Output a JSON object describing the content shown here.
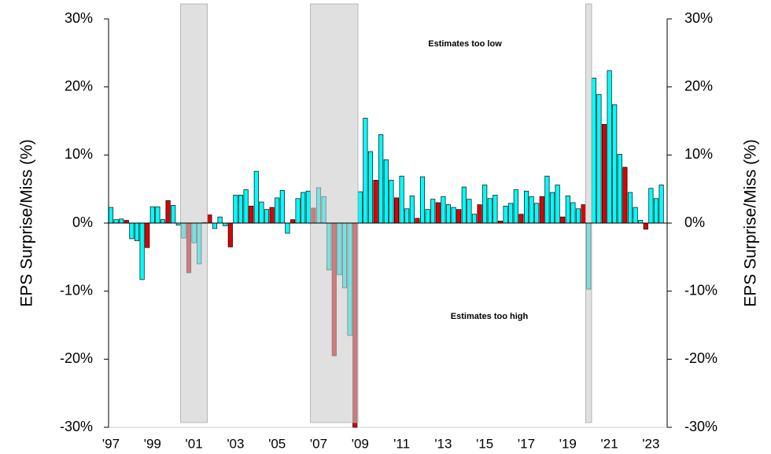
{
  "chart_data": {
    "type": "bar",
    "ylabel": "EPS Surprise/Miss (%)",
    "y2label": "EPS Surprise/Miss (%)",
    "annotations": [
      "Estimates too low",
      "Estimates too high"
    ],
    "categories": [
      "'97",
      null,
      null,
      null,
      null,
      null,
      null,
      null,
      "'99",
      null,
      null,
      null,
      null,
      null,
      null,
      null,
      "'01",
      null,
      null,
      null,
      null,
      null,
      null,
      null,
      "'03",
      null,
      null,
      null,
      null,
      null,
      null,
      null,
      "'05",
      null,
      null,
      null,
      null,
      null,
      null,
      null,
      "'07",
      null,
      null,
      null,
      null,
      null,
      null,
      null,
      "'09",
      null,
      null,
      null,
      null,
      null,
      null,
      null,
      "'11",
      null,
      null,
      null,
      null,
      null,
      null,
      null,
      "'13",
      null,
      null,
      null,
      null,
      null,
      null,
      null,
      "'15",
      null,
      null,
      null,
      null,
      null,
      null,
      null,
      "'17",
      null,
      null,
      null,
      null,
      null,
      null,
      null,
      "'19",
      null,
      null,
      null,
      null,
      null,
      null,
      null,
      "'21",
      null,
      null,
      null,
      null,
      null,
      null,
      null,
      "'23",
      null,
      null
    ],
    "values": [
      2.3,
      0.5,
      0.6,
      0.4,
      -2.3,
      -2.6,
      -8.3,
      -3.6,
      2.4,
      2.4,
      0.5,
      3.3,
      2.6,
      -0.3,
      -2.2,
      -7.3,
      -2.9,
      -6.0,
      0.1,
      1.2,
      -0.8,
      0.9,
      -0.4,
      -3.5,
      4.1,
      4.1,
      4.9,
      2.5,
      7.6,
      3.1,
      2.0,
      2.3,
      3.7,
      4.8,
      -1.5,
      0.5,
      3.6,
      4.5,
      4.7,
      2.2,
      5.2,
      3.9,
      -6.9,
      -19.5,
      -7.6,
      -9.5,
      -16.5,
      -30,
      4.6,
      15.4,
      10.5,
      6.3,
      13.0,
      9.3,
      6.3,
      3.7,
      6.9,
      2.1,
      4.0,
      0.7,
      6.8,
      2.0,
      3.5,
      3.0,
      3.9,
      2.7,
      2.3,
      2.0,
      5.3,
      3.5,
      1.3,
      2.7,
      5.6,
      3.6,
      4.1,
      0.3,
      2.5,
      2.9,
      4.9,
      1.3,
      4.7,
      3.9,
      2.9,
      3.9,
      6.9,
      4.5,
      5.6,
      0.9,
      4.0,
      3.0,
      2.1,
      2.7,
      -9.7,
      21.3,
      18.9,
      14.5,
      22.4,
      17.4,
      10.1,
      8.2,
      4.5,
      2.3,
      0.4,
      -0.9,
      5.1,
      3.6,
      5.6
    ],
    "colors": [
      "#00ffff",
      "#00ffff",
      "#00ffff",
      "#dd0000",
      "#00ffff",
      "#00ffff",
      "#00ffff",
      "#dd0000",
      "#00ffff",
      "#00ffff",
      "#00ffff",
      "#dd0000",
      "#00ffff",
      "#00ffff",
      "#00ffff",
      "#dd0000",
      "#00ffff",
      "#00ffff",
      "#00ffff",
      "#dd0000",
      "#00ffff",
      "#00ffff",
      "#00ffff",
      "#dd0000",
      "#00ffff",
      "#00ffff",
      "#00ffff",
      "#dd0000",
      "#00ffff",
      "#00ffff",
      "#00ffff",
      "#dd0000",
      "#00ffff",
      "#00ffff",
      "#00ffff",
      "#dd0000",
      "#00ffff",
      "#00ffff",
      "#00ffff",
      "#dd0000",
      "#00ffff",
      "#00ffff",
      "#00ffff",
      "#dd0000",
      "#00ffff",
      "#00ffff",
      "#00ffff",
      "#dd0000",
      "#00ffff",
      "#00ffff",
      "#00ffff",
      "#dd0000",
      "#00ffff",
      "#00ffff",
      "#00ffff",
      "#dd0000",
      "#00ffff",
      "#00ffff",
      "#00ffff",
      "#dd0000",
      "#00ffff",
      "#00ffff",
      "#00ffff",
      "#dd0000",
      "#00ffff",
      "#00ffff",
      "#00ffff",
      "#dd0000",
      "#00ffff",
      "#00ffff",
      "#00ffff",
      "#dd0000",
      "#00ffff",
      "#00ffff",
      "#00ffff",
      "#dd0000",
      "#00ffff",
      "#00ffff",
      "#00ffff",
      "#dd0000",
      "#00ffff",
      "#00ffff",
      "#00ffff",
      "#dd0000",
      "#00ffff",
      "#00ffff",
      "#00ffff",
      "#dd0000",
      "#00ffff",
      "#00ffff",
      "#00ffff",
      "#dd0000",
      "#00ffff",
      "#00ffff",
      "#00ffff",
      "#dd0000",
      "#00ffff",
      "#00ffff",
      "#00ffff",
      "#dd0000",
      "#00ffff",
      "#00ffff",
      "#00ffff",
      "#dd0000",
      "#00ffff",
      "#00ffff",
      "#00ffff"
    ],
    "shaded_spans": [
      [
        14,
        18
      ],
      [
        39,
        47
      ],
      [
        92,
        92
      ]
    ],
    "shade_color": "#cccccc",
    "ylim": [
      -30,
      30
    ],
    "yticks": [
      {
        "value": -30,
        "label": "-30%"
      },
      {
        "value": -20,
        "label": "-20%"
      },
      {
        "value": -10,
        "label": "-10%"
      },
      {
        "value": 0,
        "label": "0%"
      },
      {
        "value": 10,
        "label": "10%"
      },
      {
        "value": 20,
        "label": "20%"
      },
      {
        "value": 30,
        "label": "30%"
      }
    ],
    "y2lim": [
      -30,
      30
    ],
    "y2ticks": [
      {
        "value": -30,
        "label": "-30%"
      },
      {
        "value": -20,
        "label": "-20%"
      },
      {
        "value": -10,
        "label": "-10%"
      },
      {
        "value": 0,
        "label": "0%"
      },
      {
        "value": 10,
        "label": "10%"
      },
      {
        "value": 20,
        "label": "20%"
      },
      {
        "value": 30,
        "label": "30%"
      }
    ],
    "negative_tick_color": "#e00000",
    "grid": false
  }
}
